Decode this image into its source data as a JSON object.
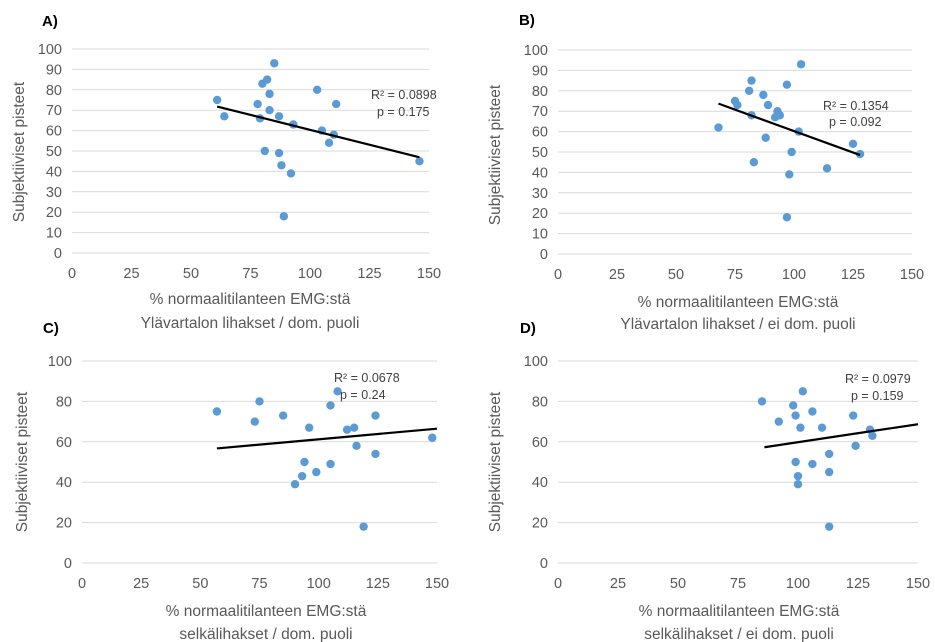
{
  "colors": {
    "point": "#5b9bd5",
    "trendline": "#000000",
    "grid": "#d9d9d9",
    "axis_text": "#595959",
    "annotation_text": "#404040"
  },
  "chart_data": [
    {
      "panel": "A)",
      "type": "scatter",
      "xlabel": [
        "% normaalitilanteen EMG:stä",
        "Ylävartalon lihakset / dom. puoli"
      ],
      "ylabel": "Subjektiiviset pisteet",
      "xlim": [
        0,
        150
      ],
      "ylim": [
        0,
        100
      ],
      "x_ticks": [
        "0",
        "25",
        "50",
        "75",
        "100",
        "125",
        "150"
      ],
      "y_ticks": [
        "0",
        "10",
        "20",
        "30",
        "40",
        "50",
        "60",
        "70",
        "80",
        "90",
        "100"
      ],
      "grid": "horizontal",
      "points": [
        [
          61,
          75
        ],
        [
          64,
          67
        ],
        [
          78,
          73
        ],
        [
          79,
          66
        ],
        [
          80,
          83
        ],
        [
          81,
          50
        ],
        [
          82,
          85
        ],
        [
          83,
          78
        ],
        [
          83,
          70
        ],
        [
          85,
          93
        ],
        [
          87,
          67
        ],
        [
          87,
          49
        ],
        [
          88,
          43
        ],
        [
          89,
          18
        ],
        [
          92,
          39
        ],
        [
          93,
          63
        ],
        [
          103,
          80
        ],
        [
          105,
          60
        ],
        [
          108,
          54
        ],
        [
          110,
          58
        ],
        [
          111,
          73
        ],
        [
          146,
          45
        ]
      ],
      "trendline": {
        "x": [
          61,
          146
        ],
        "y": [
          71.8,
          46.9
        ]
      },
      "annotation": {
        "r2": "R² = 0.0898",
        "p": "p = 0.175"
      }
    },
    {
      "panel": "B)",
      "type": "scatter",
      "xlabel": [
        "% normaalitilanteen EMG:stä",
        "Ylävartalon lihakset / ei dom. puoli"
      ],
      "ylabel": "Subjektiiviset pisteet",
      "xlim": [
        0,
        150
      ],
      "ylim": [
        0,
        100
      ],
      "x_ticks": [
        "0",
        "25",
        "50",
        "75",
        "100",
        "125",
        "150"
      ],
      "y_ticks": [
        "0",
        "10",
        "20",
        "30",
        "40",
        "50",
        "60",
        "70",
        "80",
        "90",
        "100"
      ],
      "grid": "horizontal",
      "points": [
        [
          68,
          62
        ],
        [
          75,
          75
        ],
        [
          76,
          73
        ],
        [
          81,
          80
        ],
        [
          82,
          85
        ],
        [
          82,
          68
        ],
        [
          83,
          45
        ],
        [
          87,
          78
        ],
        [
          88,
          57
        ],
        [
          89,
          73
        ],
        [
          92,
          67
        ],
        [
          93,
          70
        ],
        [
          94,
          68
        ],
        [
          97,
          83
        ],
        [
          97,
          18
        ],
        [
          98,
          39
        ],
        [
          99,
          50
        ],
        [
          102,
          60
        ],
        [
          103,
          93
        ],
        [
          114,
          42
        ],
        [
          125,
          54
        ],
        [
          128,
          49
        ]
      ],
      "trendline": {
        "x": [
          68,
          128
        ],
        "y": [
          73.7,
          48.5
        ]
      },
      "annotation": {
        "r2": "R² = 0.1354",
        "p": "p = 0.092"
      }
    },
    {
      "panel": "C)",
      "type": "scatter",
      "xlabel": [
        "% normaalitilanteen EMG:stä",
        "selkälihakset / dom. puoli"
      ],
      "ylabel": "Subjektiiviset pisteet",
      "xlim": [
        0,
        150
      ],
      "ylim": [
        0,
        100
      ],
      "x_ticks": [
        "0",
        "25",
        "50",
        "75",
        "100",
        "125",
        "150"
      ],
      "y_ticks": [
        "0",
        "20",
        "40",
        "60",
        "80",
        "100"
      ],
      "grid": "horizontal",
      "points": [
        [
          57,
          75
        ],
        [
          73,
          70
        ],
        [
          75,
          80
        ],
        [
          85,
          73
        ],
        [
          90,
          39
        ],
        [
          93,
          43
        ],
        [
          94,
          50
        ],
        [
          96,
          67
        ],
        [
          99,
          45
        ],
        [
          105,
          49
        ],
        [
          105,
          78
        ],
        [
          108,
          85
        ],
        [
          112,
          66
        ],
        [
          115,
          67
        ],
        [
          116,
          58
        ],
        [
          119,
          18
        ],
        [
          124,
          73
        ],
        [
          124,
          54
        ],
        [
          148,
          62
        ]
      ],
      "trendline": {
        "x": [
          57,
          150
        ],
        "y": [
          56.7,
          66.5
        ]
      },
      "annotation": {
        "r2": "R² = 0.0678",
        "p": "p = 0.24"
      }
    },
    {
      "panel": "D)",
      "type": "scatter",
      "xlabel": [
        "% normaalitilanteen EMG:stä",
        "selkälihakset / ei dom. puoli"
      ],
      "ylabel": "Subjektiiviset pisteet",
      "xlim": [
        0,
        150
      ],
      "ylim": [
        0,
        100
      ],
      "x_ticks": [
        "0",
        "25",
        "50",
        "75",
        "100",
        "125",
        "150"
      ],
      "y_ticks": [
        "0",
        "20",
        "40",
        "60",
        "80",
        "100"
      ],
      "grid": "horizontal",
      "points": [
        [
          85,
          80
        ],
        [
          92,
          70
        ],
        [
          98,
          78
        ],
        [
          99,
          73
        ],
        [
          99,
          50
        ],
        [
          100,
          43
        ],
        [
          100,
          39
        ],
        [
          101,
          67
        ],
        [
          102,
          85
        ],
        [
          106,
          75
        ],
        [
          106,
          49
        ],
        [
          110,
          67
        ],
        [
          113,
          54
        ],
        [
          113,
          45
        ],
        [
          113,
          18
        ],
        [
          123,
          73
        ],
        [
          124,
          58
        ],
        [
          130,
          66
        ],
        [
          131,
          63
        ]
      ],
      "trendline": {
        "x": [
          86,
          150
        ],
        "y": [
          57.3,
          68.7
        ]
      },
      "annotation": {
        "r2": "R² = 0.0979",
        "p": "p = 0.159"
      }
    }
  ]
}
